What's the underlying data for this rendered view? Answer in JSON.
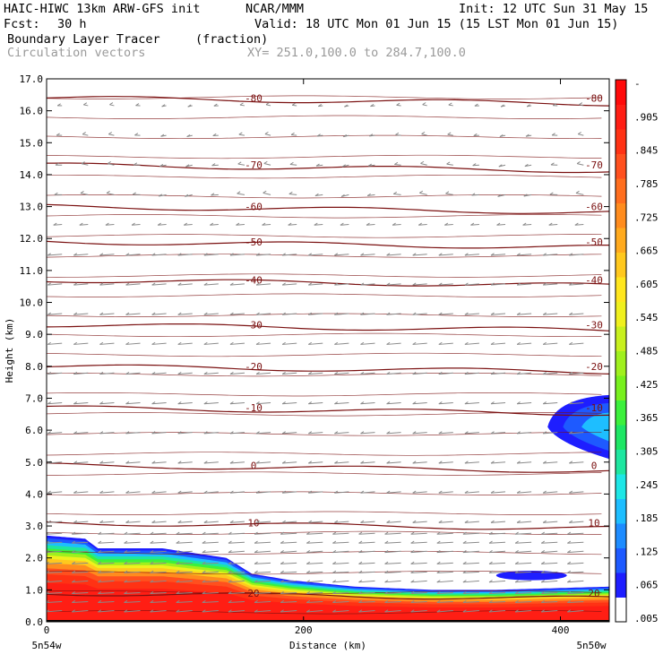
{
  "header": {
    "model": "HAIC-HIWC 13km ARW-GFS init",
    "org": "NCAR/MMM",
    "init": "Init: 12 UTC Sun 31 May 15",
    "fcst_label": "Fcst:",
    "fcst_value": "30 h",
    "valid": "Valid: 18 UTC Mon 01 Jun 15 (15 LST Mon 01 Jun 15)",
    "field": "Boundary Layer Tracer",
    "units": "(fraction)",
    "vectors": "Circulation vectors",
    "xy": "XY= 251.0,100.0 to 284.7,100.0"
  },
  "colors": {
    "contour": "#7a1010",
    "vector": "#8a8a8a",
    "palette": [
      "#ffffff",
      "#1e1eff",
      "#1e5aff",
      "#1e8cff",
      "#1ebeff",
      "#1ee6e6",
      "#1ee6a0",
      "#1ee664",
      "#3cf03c",
      "#78f01e",
      "#a0f01e",
      "#c8f01e",
      "#f0f01e",
      "#ffe61e",
      "#ffc81e",
      "#ffaa1e",
      "#ff8c1e",
      "#ff6e1e",
      "#ff501e",
      "#ff3214",
      "#ff1e14",
      "#ff0a0a"
    ]
  },
  "chart_data": {
    "type": "contour-cross-section",
    "title": "Boundary Layer Tracer",
    "units": "(fraction)",
    "xlabel": "Distance (km)",
    "ylabel": "Height (km)",
    "xlim": [
      0,
      438
    ],
    "ylim": [
      0,
      17
    ],
    "x_ticks": [
      0,
      200,
      400
    ],
    "x_tick_labels": [
      "0",
      "200",
      "400"
    ],
    "x_end_labels": [
      "5n54w",
      "5n50w"
    ],
    "y_ticks": [
      0,
      1,
      2,
      3,
      4,
      5,
      6,
      7,
      8,
      9,
      10,
      11,
      12,
      13,
      14,
      15,
      16,
      17
    ],
    "y_tick_labels": [
      "0.0",
      "1.0",
      "2.0",
      "3.0",
      "4.0",
      "5.0",
      "6.0",
      "7.0",
      "8.0",
      "9.0",
      "10.0",
      "11.0",
      "12.0",
      "13.0",
      "14.0",
      "15.0",
      "16.0",
      "17.0"
    ],
    "colorbar_labels": [
      ".005",
      ".065",
      ".125",
      ".185",
      ".245",
      ".305",
      ".365",
      ".425",
      ".485",
      ".545",
      ".605",
      ".665",
      ".725",
      ".785",
      ".845",
      ".905",
      "-"
    ],
    "temperature_contours_C": [
      {
        "label": "-80",
        "height_km": 16.4
      },
      {
        "label": "-70",
        "height_km": 14.3
      },
      {
        "label": "-60",
        "height_km": 13.0
      },
      {
        "label": "-50",
        "height_km": 11.9
      },
      {
        "label": "-40",
        "height_km": 10.7
      },
      {
        "label": "-30",
        "height_km": 9.3
      },
      {
        "label": "-20",
        "height_km": 8.0
      },
      {
        "label": "-10",
        "height_km": 6.7
      },
      {
        "label": "0",
        "height_km": 4.9
      },
      {
        "label": "10",
        "height_km": 3.1
      },
      {
        "label": "20",
        "height_km": 0.9
      }
    ],
    "boundary_layer_top_km": {
      "x": [
        0,
        30,
        40,
        90,
        140,
        160,
        190,
        240,
        300,
        350,
        438
      ],
      "y": [
        2.7,
        2.6,
        2.3,
        2.3,
        2.0,
        1.5,
        1.3,
        1.1,
        1.0,
        1.0,
        1.1
      ]
    },
    "upper_tracer_blob": {
      "x_range": [
        390,
        438
      ],
      "height_range_km": [
        5.1,
        7.1
      ],
      "max_value": 0.365
    },
    "low_tracer_blob": {
      "x_range": [
        350,
        405
      ],
      "height_range_km": [
        1.3,
        1.6
      ],
      "max_value": 0.065
    }
  }
}
